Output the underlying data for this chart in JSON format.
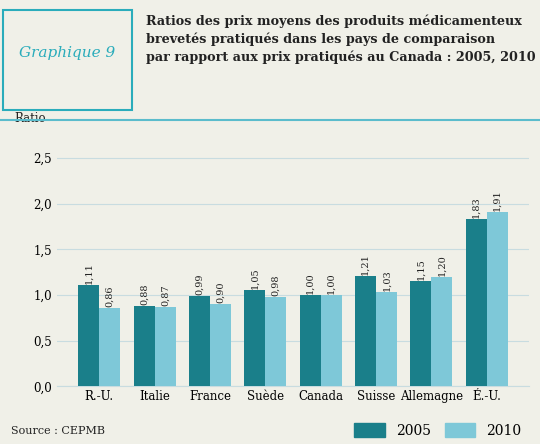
{
  "categories": [
    "R.-U.",
    "Italie",
    "France",
    "Suède",
    "Canada",
    "Suisse",
    "Allemagne",
    "É.-U."
  ],
  "values_2005": [
    1.11,
    0.88,
    0.99,
    1.05,
    1.0,
    1.21,
    1.15,
    1.83
  ],
  "values_2010": [
    0.86,
    0.87,
    0.9,
    0.98,
    1.0,
    1.03,
    1.2,
    1.91
  ],
  "color_2005": "#1a7f8a",
  "color_2010": "#7ec8d8",
  "ylabel": "Ratio",
  "ylim": [
    0.0,
    2.75
  ],
  "yticks": [
    0.0,
    0.5,
    1.0,
    1.5,
    2.0,
    2.5
  ],
  "ytick_labels": [
    "0,0",
    "0,5",
    "1,0",
    "1,5",
    "2,0",
    "2,5"
  ],
  "header_label": "Graphique 9",
  "header_title": "Ratios des prix moyens des produits médicamenteux\nbrevetés pratiqués dans les pays de comparaison\npar rapport aux prix pratiqués au Canada : 2005, 2010",
  "source": "Source : CEPMB",
  "legend_2005": "2005",
  "legend_2010": "2010",
  "bg_color": "#f0f0e8",
  "teal_color": "#2aacbb",
  "divider_color": "#5bbccc",
  "grid_color": "#c8dce0",
  "text_color": "#222222"
}
